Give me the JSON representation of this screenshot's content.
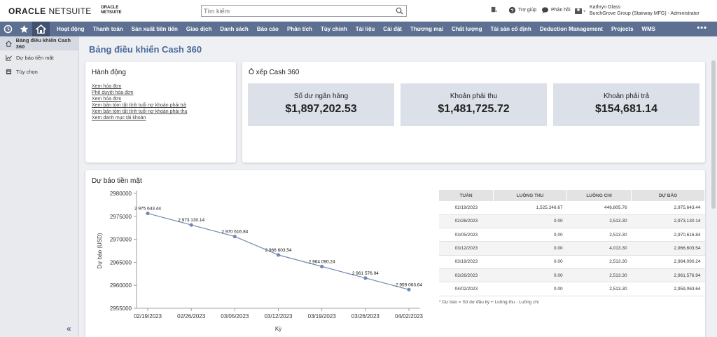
{
  "header": {
    "logo": "ORACLE",
    "logo_suffix": "NETSUITE",
    "small_logo_line1": "ORACLE",
    "small_logo_line2": "NETSUITE",
    "search_placeholder": "Tìm kiếm",
    "help_label": "Trợ giúp",
    "feedback_label": "Phản hồi",
    "user_name": "Kathryn Glass",
    "user_role": "BurchGrove Group (Stairway MFG) - Administrator"
  },
  "nav": {
    "items": [
      "Hoạt động",
      "Thanh toán",
      "Sản xuất tiên tiến",
      "Giao dịch",
      "Danh sách",
      "Báo cáo",
      "Phân tích",
      "Tùy chỉnh",
      "Tài liệu",
      "Cài đặt",
      "Thương mại",
      "Chất lượng",
      "Tài sản cố định",
      "Deduction Management",
      "Projects",
      "WMS"
    ],
    "more": "•••"
  },
  "sidebar": {
    "items": [
      {
        "label": "Bảng điều khiển Cash 360",
        "icon": "home-icon",
        "active": true
      },
      {
        "label": "Dự báo tiền mặt",
        "icon": "chart-icon",
        "active": false
      },
      {
        "label": "Tùy chọn",
        "icon": "settings-icon",
        "active": false
      }
    ],
    "collapse": "«"
  },
  "page": {
    "title": "Bảng điều khiển Cash 360"
  },
  "actions": {
    "title": "Hành động",
    "links": [
      "Xem hóa đơn",
      "Phê duyệt hóa đơn",
      "Xem hóa đơn",
      "Xem bản tóm tắt tính tuổi nợ khoản phải trả",
      "Xem bản tóm tắt tính tuổi nợ khoản phải thu",
      "Xem danh mục tài khoản"
    ]
  },
  "tiles": {
    "title": "Ô xếp Cash 360",
    "items": [
      {
        "label": "Số dư ngân hàng",
        "value": "$1,897,202.53"
      },
      {
        "label": "Khoản phải thu",
        "value": "$1,481,725.72"
      },
      {
        "label": "Khoản phải trả",
        "value": "$154,681.14"
      }
    ]
  },
  "forecast": {
    "title": "Dự báo tiền mặt",
    "table_headers": [
      "TUẦN",
      "LUỒNG THU",
      "LUỒNG CHI",
      "DỰ BÁO"
    ],
    "rows": [
      [
        "02/19/2023",
        "1,525,246.67",
        "446,805.76",
        "2,975,643.44"
      ],
      [
        "02/26/2023",
        "0.00",
        "2,513.30",
        "2,973,130.14"
      ],
      [
        "03/05/2023",
        "0.00",
        "2,513.30",
        "2,970,616.84"
      ],
      [
        "03/12/2023",
        "0.00",
        "4,013.30",
        "2,966,603.54"
      ],
      [
        "03/19/2023",
        "0.00",
        "2,513.30",
        "2,964,090.24"
      ],
      [
        "03/26/2023",
        "0.00",
        "2,513.30",
        "2,961,576.94"
      ],
      [
        "04/02/2023",
        "0.00",
        "2,513.30",
        "2,959,063.64"
      ]
    ],
    "footnote": "* Dự báo = Số dư đầu kỳ + Luồng thu - Luồng chi"
  },
  "chart_data": {
    "type": "line",
    "title": "",
    "xlabel": "Kỳ",
    "ylabel": "Dự báo (USD)",
    "categories": [
      "02/19/2023",
      "02/26/2023",
      "03/05/2023",
      "03/12/2023",
      "03/19/2023",
      "03/26/2023",
      "04/02/2023"
    ],
    "series": [
      {
        "values": [
          2975643.44,
          2973130.14,
          2970616.84,
          2966603.54,
          2964090.24,
          2961576.94,
          2959063.64
        ],
        "labels": [
          "2 975 643.44",
          "2 973 130.14",
          "2 970 616.84",
          "2 966 603.54",
          "2 964 090.24",
          "2 961 576.94",
          "2 959 063.64"
        ]
      }
    ],
    "ylim": [
      2955000,
      2980000
    ],
    "yticks": [
      2955000,
      2960000,
      2965000,
      2970000,
      2975000,
      2980000
    ],
    "ytick_labels": [
      "2955000",
      "2960000",
      "2965000",
      "2970000",
      "2975000",
      "2980000"
    ],
    "line_color": "#7589b0",
    "grid": false
  }
}
